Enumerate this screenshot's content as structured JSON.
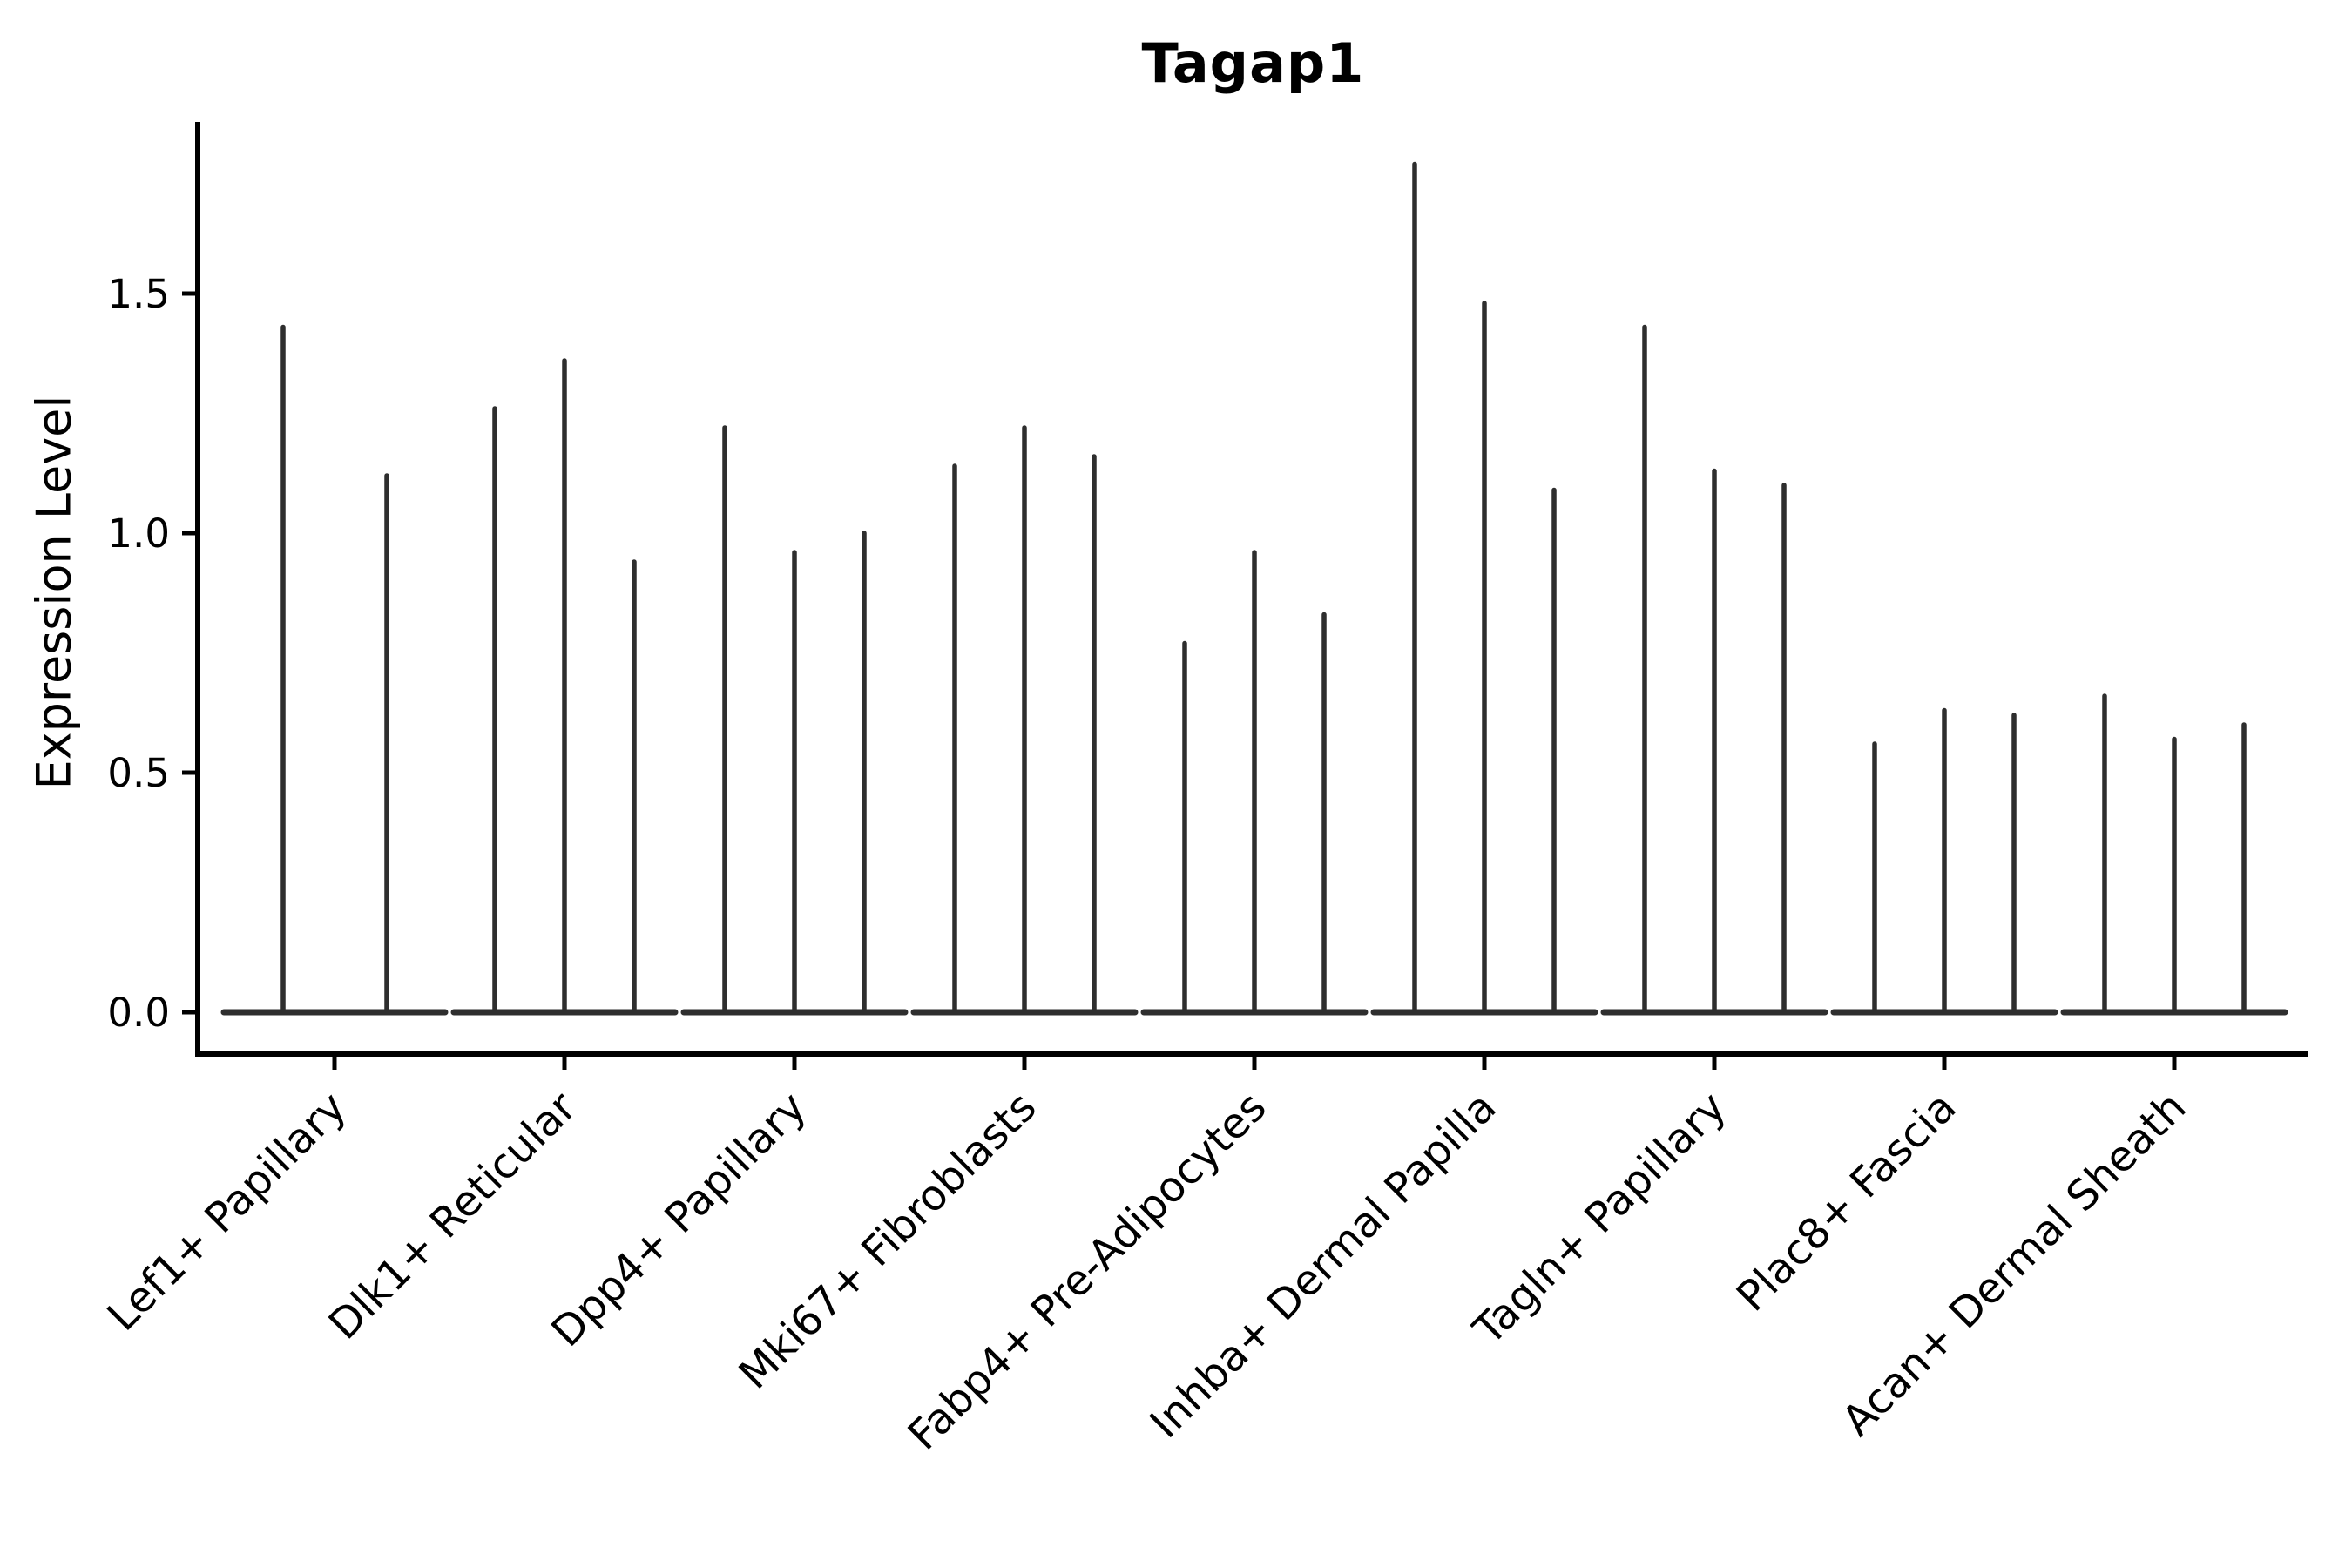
{
  "title": "Tagap1",
  "y_axis_label": "Expression Level",
  "colors": {
    "violin": "#2e2e2e",
    "axis": "#000000",
    "background": "#ffffff"
  },
  "chart_data": {
    "type": "violin",
    "title": "Tagap1",
    "xlabel": "",
    "ylabel": "Expression Level",
    "ylim": [
      -0.09,
      1.86
    ],
    "grid": false,
    "legend": "none",
    "note": "Collapsed thin violin spikes: wide flat base at expression 0 with a narrow spike reaching the max expression value; 3 violins per category except the first category which has 2.",
    "yticks": [
      {
        "value": 0.0,
        "label": "0.0"
      },
      {
        "value": 0.5,
        "label": "0.5"
      },
      {
        "value": 1.0,
        "label": "1.0"
      },
      {
        "value": 1.5,
        "label": "1.5"
      }
    ],
    "categories": [
      "Lef1+ Papillary",
      "Dlk1+ Reticular",
      "Dpp4+ Papillary",
      "Mki67+ Fibroblasts",
      "Fabp4+ Pre-Adipocytes",
      "Inhba+ Dermal Papilla",
      "Tagln+ Papillary",
      "Plac8+ Fascia",
      "Acan+ Dermal Sheath"
    ],
    "groups": [
      {
        "label": "Lef1+ Papillary",
        "peaks": [
          1.43,
          1.12
        ]
      },
      {
        "label": "Dlk1+ Reticular",
        "peaks": [
          1.26,
          1.36,
          0.94
        ]
      },
      {
        "label": "Dpp4+ Papillary",
        "peaks": [
          1.22,
          0.96,
          1.0
        ]
      },
      {
        "label": "Mki67+ Fibroblasts",
        "peaks": [
          1.14,
          1.22,
          1.16
        ]
      },
      {
        "label": "Fabp4+ Pre-Adipocytes",
        "peaks": [
          0.77,
          0.96,
          0.83
        ]
      },
      {
        "label": "Inhba+ Dermal Papilla",
        "peaks": [
          1.77,
          1.48,
          1.09
        ]
      },
      {
        "label": "Tagln+ Papillary",
        "peaks": [
          1.43,
          1.13,
          1.1
        ]
      },
      {
        "label": "Plac8+ Fascia",
        "peaks": [
          0.56,
          0.63,
          0.62
        ]
      },
      {
        "label": "Acan+ Dermal Sheath",
        "peaks": [
          0.66,
          0.57,
          0.6
        ]
      }
    ]
  }
}
